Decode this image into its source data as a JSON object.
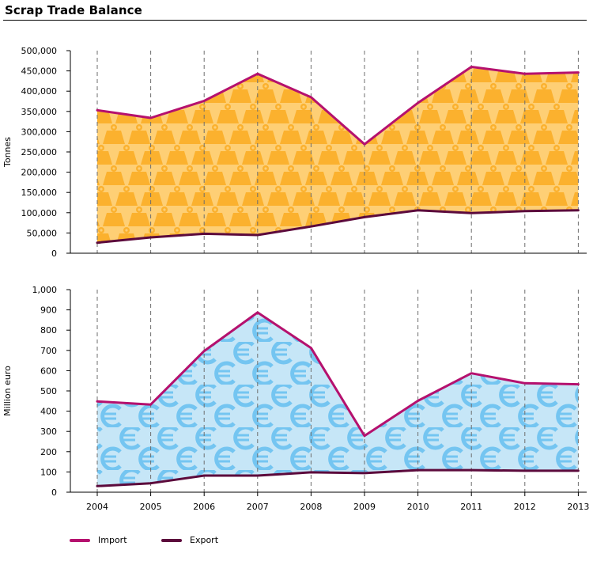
{
  "title": "Scrap Trade Balance",
  "colors": {
    "import": "#b5116e",
    "export": "#5c0a3c",
    "tonnes_fill": "#fecf75",
    "tonnes_icon": "#fbb12e",
    "euro_fill": "#c6e6f7",
    "euro_icon": "#74c5f1",
    "grid": "#6e6e6e"
  },
  "icons": {
    "tonnes_pattern": "weight-icon",
    "euro_pattern": "euro-icon"
  },
  "legend": [
    {
      "key": "import",
      "label": "Import"
    },
    {
      "key": "export",
      "label": "Export"
    }
  ],
  "chart_data": [
    {
      "type": "area",
      "ylabel": "Tonnes",
      "ylim": [
        0,
        500000
      ],
      "yticks": [
        0,
        50000,
        100000,
        150000,
        200000,
        250000,
        300000,
        350000,
        400000,
        450000,
        500000
      ],
      "ytick_labels": [
        "0",
        "50,000",
        "100,000",
        "150,000",
        "200,000",
        "250,000",
        "300,000",
        "350,000",
        "400,000",
        "450,000",
        "500,000"
      ],
      "x": [
        "2004",
        "2005",
        "2006",
        "2007",
        "2008",
        "2009",
        "2010",
        "2011",
        "2012",
        "2013"
      ],
      "series": [
        {
          "name": "Import",
          "values": [
            353000,
            334000,
            376000,
            443000,
            385000,
            269000,
            371000,
            460000,
            443000,
            446000
          ]
        },
        {
          "name": "Export",
          "values": [
            26000,
            39000,
            48000,
            45000,
            66000,
            89000,
            106000,
            99000,
            104000,
            106000
          ]
        }
      ],
      "fill": "between series",
      "grid": "vertical dashed"
    },
    {
      "type": "area",
      "ylabel": "Million euro",
      "ylim": [
        0,
        1000
      ],
      "yticks": [
        0,
        100,
        200,
        300,
        400,
        500,
        600,
        700,
        800,
        900,
        1000
      ],
      "ytick_labels": [
        "0",
        "100",
        "200",
        "300",
        "400",
        "500",
        "600",
        "700",
        "800",
        "900",
        "1,000"
      ],
      "x": [
        "2004",
        "2005",
        "2006",
        "2007",
        "2008",
        "2009",
        "2010",
        "2011",
        "2012",
        "2013"
      ],
      "series": [
        {
          "name": "Import",
          "values": [
            448,
            433,
            697,
            887,
            712,
            278,
            451,
            587,
            538,
            533
          ]
        },
        {
          "name": "Export",
          "values": [
            30,
            44,
            82,
            82,
            98,
            94,
            109,
            109,
            106,
            106
          ]
        }
      ],
      "fill": "between series",
      "grid": "vertical dashed"
    }
  ]
}
